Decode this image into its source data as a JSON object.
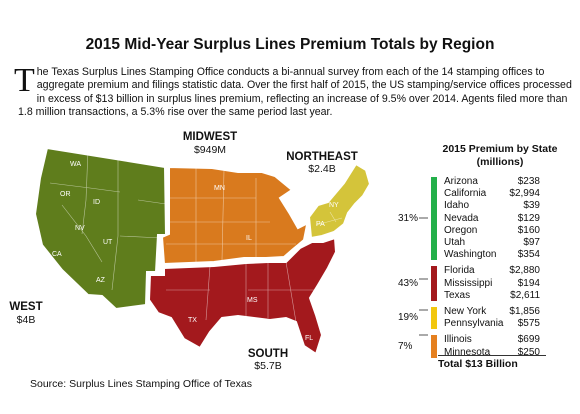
{
  "title": "2015 Mid-Year Surplus Lines Premium Totals by Region",
  "intro": {
    "drop_cap": "T",
    "text": "he Texas Surplus Lines Stamping Office conducts a bi-annual survey from each of the 14 stamping offices to aggregate premium and filings statistic data. Over the first half of 2015, the US stamping/service offices processed in excess of $13 billion in surplus lines premium, reflecting an increase of 9.5% over 2014. Agents filed more than 1.8 million transactions, a 5.3% rise over the same period last year."
  },
  "regions": [
    {
      "name": "MIDWEST",
      "value": "$949M",
      "color": "#d97a1e"
    },
    {
      "name": "NORTHEAST",
      "value": "$2.4B",
      "color": "#d4c43a"
    },
    {
      "name": "WEST",
      "value": "$4B",
      "color": "#5f7d1c"
    },
    {
      "name": "SOUTH",
      "value": "$5.7B",
      "color": "#a3191d"
    }
  ],
  "state_labels": [
    "WA",
    "OR",
    "ID",
    "NV",
    "UT",
    "CA",
    "AZ",
    "MN",
    "IL",
    "NY",
    "PA",
    "TX",
    "MS",
    "FL"
  ],
  "chart_data": {
    "type": "table",
    "title": "2015 Premium by State (millions)",
    "title_lines": [
      "2015 Premium by State",
      "(millions)"
    ],
    "groups": [
      {
        "percent": "31%",
        "color": "#23b04a",
        "rows": [
          {
            "state": "Arizona",
            "value": "$238"
          },
          {
            "state": "California",
            "value": "$2,994"
          },
          {
            "state": "Idaho",
            "value": "$39"
          },
          {
            "state": "Nevada",
            "value": "$129"
          },
          {
            "state": "Oregon",
            "value": "$160"
          },
          {
            "state": "Utah",
            "value": "$97"
          },
          {
            "state": "Washington",
            "value": "$354"
          }
        ]
      },
      {
        "percent": "43%",
        "color": "#a3191d",
        "rows": [
          {
            "state": "Florida",
            "value": "$2,880"
          },
          {
            "state": "Mississippi",
            "value": "$194"
          },
          {
            "state": "Texas",
            "value": "$2,611"
          }
        ]
      },
      {
        "percent": "19%",
        "color": "#f2c70e",
        "rows": [
          {
            "state": "New York",
            "value": "$1,856"
          },
          {
            "state": "Pennsylvania",
            "value": "$575"
          }
        ]
      },
      {
        "percent": "7%",
        "color": "#e5801f",
        "rows": [
          {
            "state": "Illinois",
            "value": "$699"
          },
          {
            "state": "Minnesota",
            "value": "$250"
          }
        ]
      }
    ],
    "total": "Total $13 Billion"
  },
  "source": "Source: Surplus Lines Stamping Office of Texas"
}
